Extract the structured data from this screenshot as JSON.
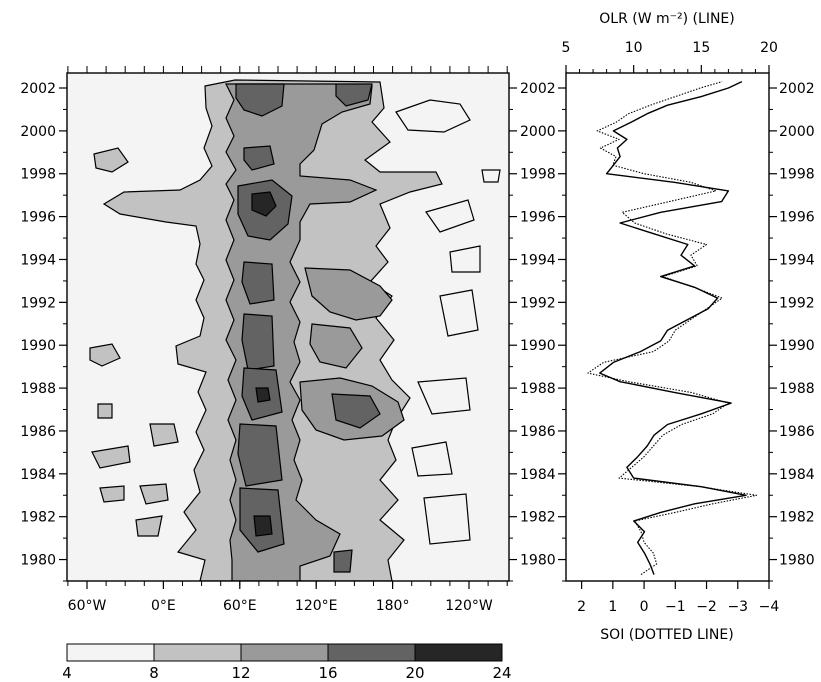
{
  "chart_data": [
    {
      "type": "heatmap",
      "title": "",
      "y_range": [
        1979,
        2002.7
      ],
      "y_ticks": [
        1980,
        1982,
        1984,
        1986,
        1988,
        1990,
        1992,
        1994,
        1996,
        1998,
        2000,
        2002
      ],
      "y_tick_labels": [
        "1980",
        "1982",
        "1984",
        "1986",
        "1988",
        "1990",
        "1992",
        "1994",
        "1996",
        "1998",
        "2000",
        "2002"
      ],
      "x_tick_labels": [
        "60°W",
        "0°E",
        "60°E",
        "120°E",
        "180°",
        "120°W"
      ],
      "colorbar": {
        "boundaries": [
          4,
          8,
          12,
          16,
          20,
          24
        ],
        "labels": [
          "4",
          "8",
          "12",
          "16",
          "20",
          "24"
        ],
        "colors": [
          "#f4f4f4",
          "#c2c2c2",
          "#9a9a9a",
          "#636363",
          "#262626"
        ]
      }
    },
    {
      "type": "line",
      "title": "",
      "top_axis_label": "OLR (W m⁻²) (LINE)",
      "top_axis_range": [
        5,
        20
      ],
      "top_ticks": [
        "5",
        "10",
        "15",
        "20"
      ],
      "bottom_axis_label": "SOI (DOTTED LINE)",
      "bottom_axis_range": [
        2.5,
        -4
      ],
      "bottom_ticks": [
        "2",
        "1",
        "0",
        "−1",
        "−2",
        "−3",
        "−4"
      ],
      "series": [
        {
          "style": "solid",
          "axis": "OLR",
          "points": [
            [
              1979.3,
              11.5
            ],
            [
              1979.8,
              11.2
            ],
            [
              1980.3,
              10.8
            ],
            [
              1980.8,
              10.3
            ],
            [
              1981.3,
              10.8
            ],
            [
              1981.8,
              10.0
            ],
            [
              1982.2,
              12.0
            ],
            [
              1982.6,
              14.5
            ],
            [
              1983.0,
              18.3
            ],
            [
              1983.4,
              15.0
            ],
            [
              1983.8,
              10.0
            ],
            [
              1984.3,
              9.5
            ],
            [
              1984.8,
              10.3
            ],
            [
              1985.3,
              11.0
            ],
            [
              1985.8,
              11.5
            ],
            [
              1986.3,
              12.5
            ],
            [
              1986.8,
              15.0
            ],
            [
              1987.3,
              17.2
            ],
            [
              1987.8,
              13.0
            ],
            [
              1988.3,
              9.0
            ],
            [
              1988.7,
              7.5
            ],
            [
              1989.2,
              8.5
            ],
            [
              1989.7,
              10.5
            ],
            [
              1990.2,
              12.0
            ],
            [
              1990.7,
              12.5
            ],
            [
              1991.2,
              14.0
            ],
            [
              1991.7,
              15.5
            ],
            [
              1992.2,
              16.2
            ],
            [
              1992.7,
              14.5
            ],
            [
              1993.2,
              12.0
            ],
            [
              1993.7,
              14.5
            ],
            [
              1994.2,
              13.5
            ],
            [
              1994.7,
              14.0
            ],
            [
              1995.2,
              11.5
            ],
            [
              1995.7,
              9.0
            ],
            [
              1996.2,
              12.0
            ],
            [
              1996.7,
              16.5
            ],
            [
              1997.2,
              17.0
            ],
            [
              1997.6,
              13.0
            ],
            [
              1998.0,
              8.0
            ],
            [
              1998.4,
              8.5
            ],
            [
              1998.8,
              9.0
            ],
            [
              1999.2,
              8.8
            ],
            [
              1999.6,
              9.5
            ],
            [
              2000.0,
              8.5
            ],
            [
              2000.4,
              9.8
            ],
            [
              2000.8,
              11.0
            ],
            [
              2001.2,
              12.5
            ],
            [
              2001.6,
              15.0
            ],
            [
              2002.0,
              17.0
            ],
            [
              2002.3,
              18.0
            ]
          ]
        },
        {
          "style": "dotted",
          "axis": "SOI",
          "points": [
            [
              1979.3,
              0.1
            ],
            [
              1979.8,
              -0.4
            ],
            [
              1980.3,
              -0.3
            ],
            [
              1980.8,
              0.0
            ],
            [
              1981.3,
              0.1
            ],
            [
              1981.8,
              0.3
            ],
            [
              1982.2,
              -1.0
            ],
            [
              1982.6,
              -2.2
            ],
            [
              1983.0,
              -3.6
            ],
            [
              1983.4,
              -1.8
            ],
            [
              1983.8,
              0.8
            ],
            [
              1984.3,
              0.4
            ],
            [
              1984.8,
              0.0
            ],
            [
              1985.3,
              -0.3
            ],
            [
              1985.8,
              -0.6
            ],
            [
              1986.3,
              -1.2
            ],
            [
              1986.8,
              -2.2
            ],
            [
              1987.3,
              -2.7
            ],
            [
              1987.8,
              -1.5
            ],
            [
              1988.3,
              0.5
            ],
            [
              1988.7,
              1.8
            ],
            [
              1989.2,
              1.3
            ],
            [
              1989.7,
              -0.3
            ],
            [
              1990.2,
              -0.8
            ],
            [
              1990.7,
              -1.0
            ],
            [
              1991.2,
              -1.5
            ],
            [
              1991.7,
              -2.0
            ],
            [
              1992.2,
              -2.5
            ],
            [
              1992.7,
              -1.6
            ],
            [
              1993.2,
              -0.6
            ],
            [
              1993.7,
              -1.7
            ],
            [
              1994.2,
              -1.5
            ],
            [
              1994.7,
              -2.0
            ],
            [
              1995.2,
              -0.7
            ],
            [
              1995.7,
              0.3
            ],
            [
              1996.2,
              0.7
            ],
            [
              1996.7,
              -0.8
            ],
            [
              1997.2,
              -2.3
            ],
            [
              1997.6,
              -1.5
            ],
            [
              1998.0,
              0.0
            ],
            [
              1998.4,
              1.0
            ],
            [
              1998.8,
              0.9
            ],
            [
              1999.2,
              1.4
            ],
            [
              1999.6,
              0.8
            ],
            [
              2000.0,
              1.5
            ],
            [
              2000.4,
              0.9
            ],
            [
              2000.8,
              0.5
            ],
            [
              2001.2,
              -0.2
            ],
            [
              2001.6,
              -1.0
            ],
            [
              2002.0,
              -1.8
            ],
            [
              2002.3,
              -2.5
            ]
          ]
        }
      ]
    }
  ]
}
